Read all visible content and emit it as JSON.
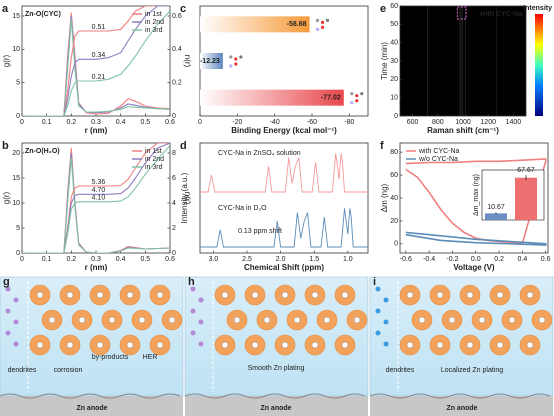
{
  "chart_data": [
    {
      "panel": "a",
      "type": "line",
      "label": "Zn-O(CYC)",
      "xlabel": "r (nm)",
      "ylabel": "g(r)",
      "y2label": "n(r)",
      "legend": "upper right",
      "x": [
        0,
        0.17,
        0.185,
        0.2,
        0.215,
        0.23,
        0.26,
        0.3,
        0.35,
        0.4,
        0.43,
        0.46,
        0.5,
        0.55,
        0.6
      ],
      "xlim": [
        0,
        0.6
      ],
      "xticks": [
        0,
        0.1,
        0.2,
        0.3,
        0.4,
        0.5,
        0.6
      ],
      "ylim": [
        0,
        16.5
      ],
      "yticks": [
        0,
        5,
        10,
        15
      ],
      "y2lim": [
        0,
        0.66
      ],
      "y2ticks": [
        0,
        0.2,
        0.4,
        0.6
      ],
      "series": [
        {
          "name": "in 1st",
          "color": "#f07f7f",
          "values": [
            0,
            0,
            9,
            15.5,
            9,
            2,
            0.5,
            0.3,
            0.4,
            1.5,
            2.6,
            2.2,
            1.5,
            1.2,
            1.1
          ]
        },
        {
          "name": "in 2nd",
          "color": "#8e7cc3",
          "values": [
            0,
            0,
            8,
            15,
            8,
            1.8,
            0.6,
            0.5,
            0.6,
            1.2,
            1.8,
            1.6,
            1.3,
            1.1,
            1.0
          ]
        },
        {
          "name": "in 3rd",
          "color": "#7fc4a4",
          "values": [
            0,
            0,
            7,
            14.5,
            7,
            1.5,
            0.6,
            0.6,
            0.7,
            1.0,
            1.4,
            1.3,
            1.2,
            1.1,
            1.0
          ]
        },
        {
          "color": "#f07f7f",
          "axis": "y2",
          "values": [
            0,
            0,
            0.15,
            0.35,
            0.48,
            0.51,
            0.51,
            0.51,
            0.51,
            0.52,
            0.57,
            0.63,
            0.66,
            0.66,
            0.66
          ]
        },
        {
          "color": "#8e7cc3",
          "axis": "y2",
          "values": [
            0,
            0,
            0.1,
            0.24,
            0.32,
            0.34,
            0.34,
            0.34,
            0.35,
            0.38,
            0.45,
            0.52,
            0.6,
            0.66,
            0.66
          ]
        },
        {
          "color": "#7fc4a4",
          "axis": "y2",
          "values": [
            0,
            0,
            0.06,
            0.15,
            0.2,
            0.21,
            0.21,
            0.21,
            0.22,
            0.25,
            0.3,
            0.36,
            0.45,
            0.55,
            0.63
          ]
        }
      ],
      "annotations": [
        0.51,
        0.34,
        0.21
      ]
    },
    {
      "panel": "b",
      "type": "line",
      "label": "Zn-O(H₂O)",
      "xlabel": "r (nm)",
      "ylabel": "g(r)",
      "y2label": "n(r)",
      "legend": "upper right",
      "x": [
        0,
        0.17,
        0.185,
        0.2,
        0.215,
        0.23,
        0.26,
        0.3,
        0.35,
        0.4,
        0.43,
        0.46,
        0.5,
        0.55,
        0.6
      ],
      "xlim": [
        0,
        0.6
      ],
      "xticks": [
        0,
        0.1,
        0.2,
        0.3,
        0.4,
        0.5,
        0.6
      ],
      "ylim": [
        0,
        22
      ],
      "yticks": [
        0,
        5,
        10,
        15,
        20
      ],
      "y2lim": [
        0,
        8.8
      ],
      "y2ticks": [
        0,
        2,
        4,
        6,
        8
      ],
      "series": [
        {
          "name": "in 1st",
          "color": "#f07f7f",
          "values": [
            0,
            0,
            12,
            21,
            10,
            2,
            0.2,
            0,
            0,
            0.5,
            1.3,
            1.1,
            0.8,
            0.9,
            1.0
          ]
        },
        {
          "name": "in 2nd",
          "color": "#8e7cc3",
          "values": [
            0,
            0,
            11,
            20,
            9.5,
            1.8,
            0.2,
            0,
            0,
            0.4,
            1.1,
            1.0,
            0.8,
            0.9,
            1.0
          ]
        },
        {
          "name": "in 3rd",
          "color": "#7fc4a4",
          "values": [
            0,
            0,
            10,
            19,
            9,
            1.6,
            0.2,
            0,
            0,
            0.4,
            1.0,
            0.9,
            0.8,
            0.9,
            1.0
          ]
        },
        {
          "color": "#f07f7f",
          "axis": "y2",
          "values": [
            0,
            0,
            2,
            4.5,
            5.2,
            5.36,
            5.36,
            5.36,
            5.36,
            5.4,
            5.9,
            6.8,
            8,
            8.8,
            8.8
          ]
        },
        {
          "color": "#8e7cc3",
          "axis": "y2",
          "values": [
            0,
            0,
            1.8,
            4,
            4.6,
            4.7,
            4.7,
            4.7,
            4.7,
            4.75,
            5.2,
            6,
            7.2,
            8.4,
            8.8
          ]
        },
        {
          "color": "#7fc4a4",
          "axis": "y2",
          "values": [
            0,
            0,
            1.5,
            3.5,
            4,
            4.1,
            4.1,
            4.1,
            4.1,
            4.15,
            4.5,
            5.2,
            6.3,
            7.5,
            8.6
          ]
        }
      ],
      "annotations": [
        5.36,
        4.7,
        4.1
      ],
      "annotation_labels": [
        "5.36",
        "4.70",
        "4.10"
      ]
    },
    {
      "panel": "c",
      "type": "hbar",
      "xlabel": "Binding Energy (kcal mol⁻¹)",
      "xlim": [
        0,
        -90
      ],
      "xticks": [
        0,
        -20,
        -40,
        -60,
        -80
      ],
      "values": [
        -58.68,
        -12.23,
        -77.02
      ],
      "colors": [
        "#f59a3a",
        "#5b86c0",
        "#e8474c"
      ]
    },
    {
      "panel": "d",
      "type": "spectrum",
      "xlabel": "Chemical Shift (ppm)",
      "ylabel": "Intensity (a.u.)",
      "xlim": [
        3.2,
        0.7
      ],
      "xticks": [
        {
          "value": 3,
          "label": "3.0"
        },
        2.5,
        {
          "value": 2,
          "label": "2.0"
        },
        1.5,
        {
          "value": 1,
          "label": "1.0"
        }
      ],
      "ylim": [
        0,
        10
      ],
      "annotation": "0.13 ppm shift",
      "series": [
        {
          "name": "CYC-Na in ZnSO₄ solution",
          "color": "#f29a9a",
          "x": [
            3.2,
            3.08,
            3.03,
            2.98,
            2.23,
            2.18,
            2.13,
            1.93,
            1.88,
            1.83,
            1.78,
            1.73,
            1.68,
            1.53,
            1.48,
            1.43,
            1.23,
            1.18,
            1.13,
            1.1,
            1.08,
            1.05,
            0.7
          ],
          "values": [
            0,
            0,
            4,
            0,
            0,
            6,
            0,
            0,
            8,
            2,
            6,
            8,
            0,
            0,
            7,
            0,
            0,
            9,
            3,
            9,
            7,
            0,
            0
          ]
        },
        {
          "name": "CYC-Na in D₂O",
          "color": "#5b8db8",
          "x": [
            3.2,
            2.95,
            2.9,
            2.85,
            2.1,
            2.05,
            2.0,
            1.8,
            1.75,
            1.7,
            1.65,
            1.6,
            1.55,
            1.4,
            1.35,
            1.3,
            1.1,
            1.05,
            1.0,
            0.97,
            0.95,
            0.92,
            0.7
          ],
          "values": [
            0,
            0,
            4,
            0,
            0,
            6,
            0,
            0,
            8,
            2,
            6,
            8,
            0,
            0,
            7,
            0,
            0,
            9,
            3,
            9,
            7,
            0,
            0
          ]
        }
      ]
    },
    {
      "panel": "e",
      "type": "heatmap",
      "label": "with CYC-Na",
      "xlabel": "Raman shift (cm⁻¹)",
      "ylabel": "Time (min)",
      "colorbar_label": "Intensity",
      "xlim": [
        500,
        1500
      ],
      "xticks": [
        600,
        800,
        1000,
        1200,
        1400
      ],
      "ylim": [
        0,
        60
      ],
      "yticks": [
        0,
        10,
        20,
        30,
        40,
        50,
        60
      ],
      "x": [
        500,
        940,
        965,
        978,
        985,
        992,
        1005,
        1030,
        1500
      ],
      "values": [
        0.1,
        0.15,
        0.3,
        0.7,
        1,
        0.7,
        0.3,
        0.15,
        0.1
      ]
    },
    {
      "panel": "f",
      "type": "line",
      "xlabel": "Voltage (V)",
      "ylabel": "Δm (ng)",
      "legend": "upper left",
      "xlim": [
        -0.65,
        0.62
      ],
      "xticks": [
        -0.6,
        -0.4,
        -0.2,
        {
          "value": 0,
          "label": "0.0"
        },
        0.2,
        0.4,
        0.6
      ],
      "ylim": [
        -8,
        88
      ],
      "yticks": [
        0,
        20,
        40,
        60,
        80
      ],
      "series": [
        {
          "name": "with CYC-Na",
          "color": "#f07f7f",
          "x": [
            -0.6,
            -0.4,
            -0.2,
            0,
            0.2,
            0.4,
            0.6,
            0.6,
            0.4,
            0.2,
            0.1,
            0,
            -0.1,
            -0.2,
            -0.3,
            -0.4,
            -0.5,
            -0.6
          ],
          "values": [
            70,
            71,
            71,
            72,
            72,
            73,
            74,
            72,
            0.5,
            2,
            3,
            5,
            10,
            18,
            30,
            45,
            58,
            65
          ]
        },
        {
          "name": "w/o  CYC-Na",
          "color": "#5b8db8",
          "x": [
            -0.6,
            -0.3,
            0,
            0.3,
            0.6,
            0.6,
            0.3,
            0,
            -0.3,
            -0.6
          ],
          "values": [
            10,
            7,
            4,
            2,
            0,
            -1,
            0,
            1,
            3,
            8
          ]
        }
      ],
      "inset": {
        "ylabel": "Δm_max (ng)",
        "ylim": [
          0,
          80
        ],
        "values": [
          10.67,
          67.67
        ],
        "errors": [
          1.5,
          4
        ],
        "colors": [
          "#6a8fc0",
          "#ee6f6f"
        ]
      }
    }
  ],
  "schematics": [
    {
      "panel": "g",
      "labels": [
        "dendrites",
        "corrosion",
        "by-products",
        "HER",
        "Zn anode"
      ]
    },
    {
      "panel": "h",
      "labels": [
        "Smooth Zn plating",
        "Zn anode"
      ]
    },
    {
      "panel": "i",
      "labels": [
        "dendrites",
        "Localized Zn plating",
        "Zn anode"
      ]
    }
  ]
}
